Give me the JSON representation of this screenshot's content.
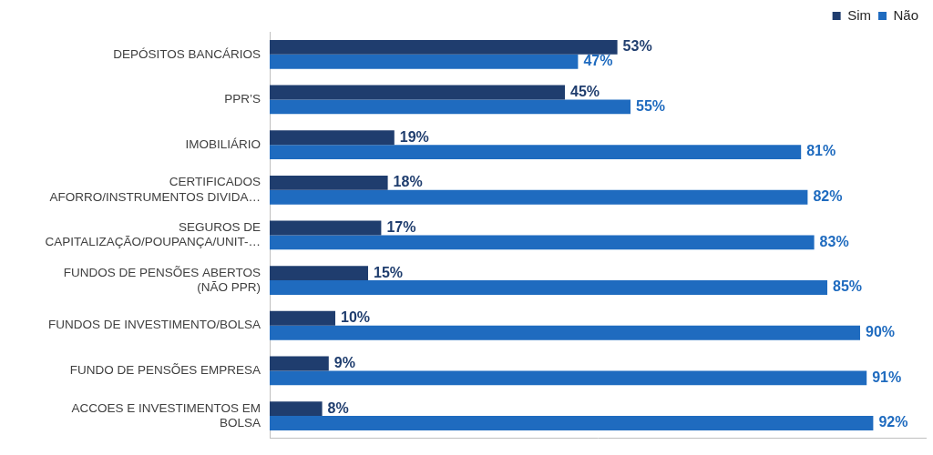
{
  "chart_data": {
    "type": "bar",
    "orientation": "horizontal",
    "categories": [
      "DEPÓSITOS BANCÁRIOS",
      "PPR’S",
      "IMOBILIÁRIO",
      "CERTIFICADOS\nAFORRO/INSTRUMENTOS DIVIDA…",
      "SEGUROS DE\nCAPITALIZAÇÃO/POUPANÇA/UNIT-…",
      "FUNDOS DE PENSÕES ABERTOS\n(NÃO PPR)",
      "FUNDOS DE INVESTIMENTO/BOLSA",
      "FUNDO DE PENSÕES EMPRESA",
      "ACCOES E INVESTIMENTOS EM\nBOLSA"
    ],
    "series": [
      {
        "name": "Sim",
        "color": "#1f3d6e",
        "values": [
          53,
          45,
          19,
          18,
          17,
          15,
          10,
          9,
          8
        ],
        "value_labels": [
          "53%",
          "45%",
          "19%",
          "18%",
          "17%",
          "15%",
          "10%",
          "9%",
          "8%"
        ]
      },
      {
        "name": "Não",
        "color": "#1f6bbf",
        "values": [
          47,
          55,
          81,
          82,
          83,
          85,
          90,
          91,
          92
        ],
        "value_labels": [
          "47%",
          "55%",
          "81%",
          "82%",
          "83%",
          "85%",
          "90%",
          "91%",
          "92%"
        ]
      }
    ],
    "xlim": [
      0,
      100
    ],
    "grid": false,
    "legend": "top-right",
    "data_labels": true,
    "tick_labels": "y"
  }
}
